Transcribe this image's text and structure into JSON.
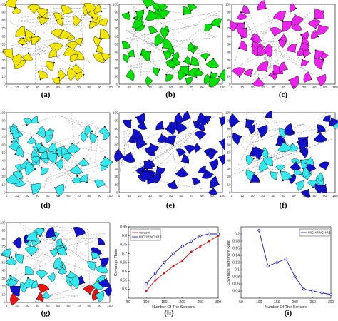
{
  "chart_data": [
    {
      "type": "scatter",
      "panel": "a",
      "caption": "(a)",
      "sector_color": "#f5e600",
      "sector_count": 50,
      "seed": 11,
      "xlim": [
        0,
        100
      ],
      "ylim": [
        0,
        100
      ],
      "x_ticks": [
        "0",
        "10",
        "20",
        "30",
        "40",
        "50",
        "60",
        "70",
        "80",
        "90",
        "100"
      ],
      "y_ticks": [
        "0",
        "10",
        "20",
        "30",
        "40",
        "50",
        "60",
        "70",
        "80",
        "90",
        "100"
      ]
    },
    {
      "type": "scatter",
      "panel": "b",
      "caption": "(b)",
      "sector_color": "#00e000",
      "sector_count": 50,
      "seed": 23,
      "xlim": [
        0,
        100
      ],
      "ylim": [
        0,
        100
      ],
      "x_ticks": [
        "0",
        "10",
        "20",
        "30",
        "40",
        "50",
        "60",
        "70",
        "80",
        "90",
        "100"
      ],
      "y_ticks": [
        "0",
        "10",
        "20",
        "30",
        "40",
        "50",
        "60",
        "70",
        "80",
        "90",
        "100"
      ]
    },
    {
      "type": "scatter",
      "panel": "c",
      "caption": "(c)",
      "sector_color": "#ee22ee",
      "sector_count": 50,
      "seed": 37,
      "xlim": [
        0,
        100
      ],
      "ylim": [
        0,
        100
      ],
      "x_ticks": [
        "0",
        "10",
        "20",
        "30",
        "40",
        "50",
        "60",
        "70",
        "80",
        "90",
        "100"
      ],
      "y_ticks": [
        "0",
        "10",
        "20",
        "30",
        "40",
        "50",
        "60",
        "70",
        "80",
        "90",
        "100"
      ]
    },
    {
      "type": "scatter",
      "panel": "d",
      "caption": "(d)",
      "sector_color": "#33e8ee",
      "sector_count": 50,
      "seed": 41,
      "xlim": [
        0,
        100
      ],
      "ylim": [
        0,
        100
      ],
      "x_ticks": [
        "0",
        "10",
        "20",
        "30",
        "40",
        "50",
        "60",
        "70",
        "80",
        "90",
        "100"
      ],
      "y_ticks": [
        "0",
        "10",
        "20",
        "30",
        "40",
        "50",
        "60",
        "70",
        "80",
        "90",
        "100"
      ]
    },
    {
      "type": "scatter",
      "panel": "e",
      "caption": "(e)",
      "sector_color": "#1111cc",
      "sector_count": 50,
      "seed": 53,
      "xlim": [
        0,
        100
      ],
      "ylim": [
        0,
        100
      ],
      "x_ticks": [
        "0",
        "10",
        "20",
        "30",
        "40",
        "50",
        "60",
        "70",
        "80",
        "90",
        "100"
      ],
      "y_ticks": [
        "0",
        "10",
        "20",
        "30",
        "40",
        "50",
        "60",
        "70",
        "80",
        "90",
        "100"
      ]
    },
    {
      "type": "scatter",
      "panel": "f",
      "caption": "(f)",
      "sector_color": "#1111cc",
      "sector_color_2": "#33e8ee",
      "sector_count": 50,
      "seed": 67,
      "xlim": [
        0,
        100
      ],
      "ylim": [
        0,
        100
      ],
      "x_ticks": [
        "0",
        "10",
        "20",
        "30",
        "40",
        "50",
        "60",
        "70",
        "80",
        "90",
        "100"
      ],
      "y_ticks": [
        "0",
        "10",
        "20",
        "30",
        "40",
        "50",
        "60",
        "70",
        "80",
        "90",
        "100"
      ]
    },
    {
      "type": "scatter",
      "panel": "g",
      "caption": "(g)",
      "sector_color": "#1111cc",
      "sector_color_2": "#33e8ee",
      "sector_color_3": "#ee1111",
      "sector_count": 52,
      "seed": 79,
      "xlim": [
        0,
        100
      ],
      "ylim": [
        0,
        100
      ],
      "x_ticks": [
        "0",
        "10",
        "20",
        "30",
        "40",
        "50",
        "60",
        "70",
        "80",
        "90",
        "100"
      ],
      "y_ticks": [
        "0",
        "10",
        "20",
        "30",
        "40",
        "50",
        "60",
        "70",
        "80",
        "90",
        "100"
      ]
    },
    {
      "type": "line",
      "panel": "h",
      "caption": "(h)",
      "xlabel": "Number Of The Sensors",
      "ylabel": "Coverage Ratio",
      "xlim": [
        50,
        300
      ],
      "ylim": [
        0.45,
        0.85
      ],
      "x_ticks": [
        "50",
        "100",
        "150",
        "200",
        "250",
        "300"
      ],
      "y_ticks": [
        "0.5",
        "0.55",
        "0.6",
        "0.65",
        "0.7",
        "0.75",
        "0.8",
        "0.85"
      ],
      "x": [
        100,
        125,
        150,
        175,
        200,
        225,
        250,
        275,
        300
      ],
      "series": [
        {
          "name": "random",
          "color": "#dd1111",
          "marker": "dot",
          "values": [
            0.49,
            0.55,
            0.59,
            0.63,
            0.66,
            0.71,
            0.74,
            0.77,
            0.8
          ]
        },
        {
          "name": "MICHRWCHRB",
          "color": "#1a1acc",
          "marker": "diamond",
          "values": [
            0.53,
            0.59,
            0.65,
            0.7,
            0.74,
            0.77,
            0.8,
            0.81,
            0.81
          ]
        }
      ]
    },
    {
      "type": "line",
      "panel": "i",
      "caption": "(i)",
      "xlabel": "Number Of The Sensors",
      "ylabel": "Coverage Increment Ratio",
      "xlim": [
        50,
        300
      ],
      "ylim": [
        0.02,
        0.22
      ],
      "x_ticks": [
        "50",
        "100",
        "150",
        "200",
        "250",
        "300"
      ],
      "y_ticks": [
        "0.04",
        "0.06",
        "0.08",
        "0.1",
        "0.12",
        "0.14",
        "0.16",
        "0.18",
        "0.2"
      ],
      "x": [
        100,
        125,
        150,
        175,
        200,
        225,
        250,
        275,
        300
      ],
      "series": [
        {
          "name": "MICHRWCHRB",
          "color": "#1a1acc",
          "marker": "diamond",
          "values": [
            0.21,
            0.11,
            0.12,
            0.13,
            0.08,
            0.045,
            0.04,
            0.035,
            0.03
          ]
        }
      ]
    }
  ]
}
